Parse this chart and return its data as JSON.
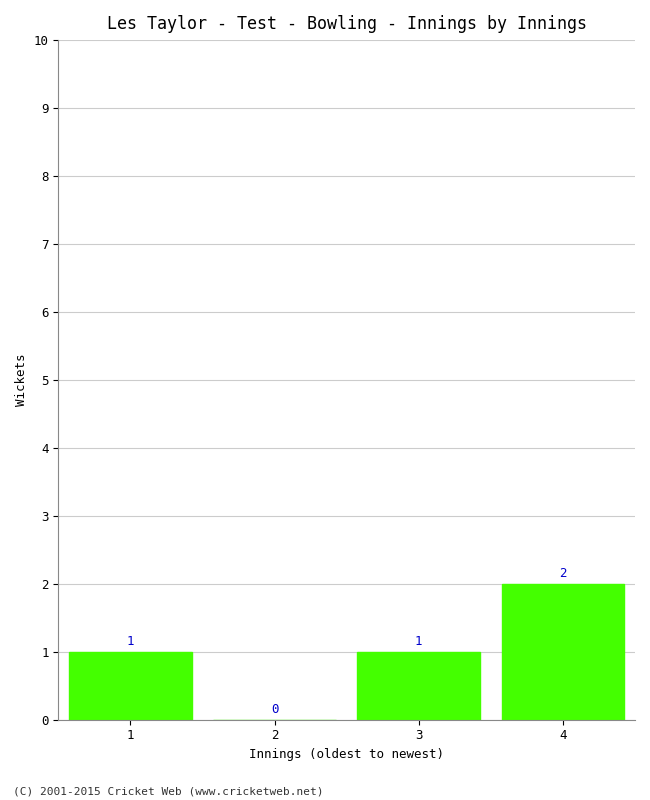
{
  "title": "Les Taylor - Test - Bowling - Innings by Innings",
  "xlabel": "Innings (oldest to newest)",
  "ylabel": "Wickets",
  "categories": [
    "1",
    "2",
    "3",
    "4"
  ],
  "values": [
    1,
    0,
    1,
    2
  ],
  "bar_color": "#44ff00",
  "zero_label_color": "#0000cc",
  "nonzero_label_color": "#0000cc",
  "ylim": [
    0,
    10
  ],
  "yticks": [
    0,
    1,
    2,
    3,
    4,
    5,
    6,
    7,
    8,
    9,
    10
  ],
  "background_color": "#ffffff",
  "plot_bg_color": "#ffffff",
  "footer": "(C) 2001-2015 Cricket Web (www.cricketweb.net)",
  "title_fontsize": 12,
  "label_fontsize": 9,
  "tick_fontsize": 9,
  "footer_fontsize": 8,
  "annotation_fontsize": 9,
  "bar_width": 0.85
}
